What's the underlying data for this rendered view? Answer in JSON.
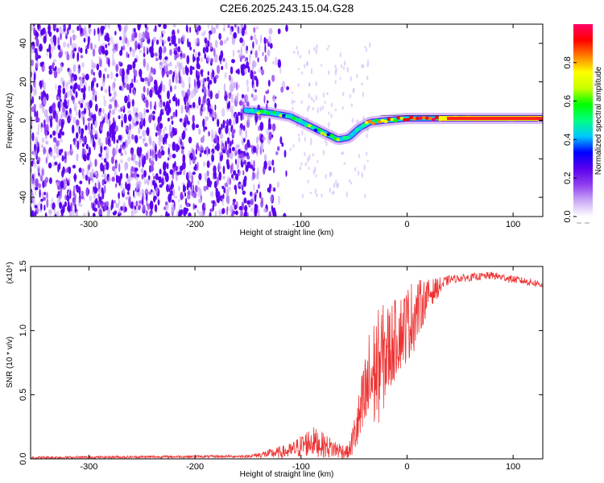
{
  "title": "C2E6.2025.243.15.04.G28",
  "chart_data": [
    {
      "type": "heatmap",
      "name": "spectrogram",
      "xlabel": "Height of straight line (km)",
      "ylabel": "Frequency (Hz)",
      "xlim": [
        -355,
        128
      ],
      "ylim": [
        -50,
        50
      ],
      "x_ticks": [
        -300,
        -200,
        -100,
        0,
        100
      ],
      "y_ticks": [
        -40,
        -20,
        0,
        20,
        40
      ],
      "colorbar": {
        "label": "Normalized spectral amplitude",
        "range": [
          0,
          1
        ],
        "ticks": [
          0.0,
          0.2,
          0.4,
          0.6,
          0.8
        ],
        "colors": [
          "#ffffff",
          "#c9a9f5",
          "#8f3cf0",
          "#5a00ee",
          "#0000ff",
          "#00c8ff",
          "#00ff80",
          "#00ff00",
          "#c8ff00",
          "#ffff00",
          "#ff8000",
          "#ff0000",
          "#ff0066"
        ]
      },
      "noise_region": {
        "x_from": -355,
        "x_to": -150,
        "fade_to": -110
      },
      "signal_track": [
        {
          "x": -152,
          "f": 5
        },
        {
          "x": -130,
          "f": 4
        },
        {
          "x": -110,
          "f": 2
        },
        {
          "x": -95,
          "f": -2
        },
        {
          "x": -80,
          "f": -6
        },
        {
          "x": -65,
          "f": -10
        },
        {
          "x": -55,
          "f": -9
        },
        {
          "x": -45,
          "f": -4
        },
        {
          "x": -35,
          "f": -1
        },
        {
          "x": -20,
          "f": 0
        },
        {
          "x": 0,
          "f": 1
        },
        {
          "x": 40,
          "f": 1
        },
        {
          "x": 80,
          "f": 1
        },
        {
          "x": 128,
          "f": 1
        }
      ]
    },
    {
      "type": "line",
      "name": "snr",
      "xlabel": "Height of straight line (km)",
      "ylabel": "SNR (10 * v/v)",
      "scale_label": "(x10⁴)",
      "xlim": [
        -355,
        128
      ],
      "ylim": [
        0,
        1.5
      ],
      "x_ticks": [
        -300,
        -200,
        -100,
        0,
        100
      ],
      "y_ticks": [
        0.0,
        0.5,
        1.0,
        1.5
      ],
      "series": [
        {
          "name": "SNR",
          "color": "#ee3333",
          "envelope": [
            {
              "x": -355,
              "mean": 0.01,
              "noise": 0.01
            },
            {
              "x": -150,
              "mean": 0.02,
              "noise": 0.01
            },
            {
              "x": -110,
              "mean": 0.06,
              "noise": 0.06
            },
            {
              "x": -90,
              "mean": 0.14,
              "noise": 0.12
            },
            {
              "x": -70,
              "mean": 0.08,
              "noise": 0.08
            },
            {
              "x": -55,
              "mean": 0.05,
              "noise": 0.05
            },
            {
              "x": -45,
              "mean": 0.3,
              "noise": 0.25
            },
            {
              "x": -35,
              "mean": 0.6,
              "noise": 0.45
            },
            {
              "x": -25,
              "mean": 0.75,
              "noise": 0.45
            },
            {
              "x": -10,
              "mean": 0.95,
              "noise": 0.3
            },
            {
              "x": 5,
              "mean": 1.1,
              "noise": 0.3
            },
            {
              "x": 20,
              "mean": 1.28,
              "noise": 0.12
            },
            {
              "x": 40,
              "mean": 1.4,
              "noise": 0.03
            },
            {
              "x": 80,
              "mean": 1.43,
              "noise": 0.03
            },
            {
              "x": 128,
              "mean": 1.36,
              "noise": 0.03
            }
          ]
        }
      ]
    }
  ]
}
